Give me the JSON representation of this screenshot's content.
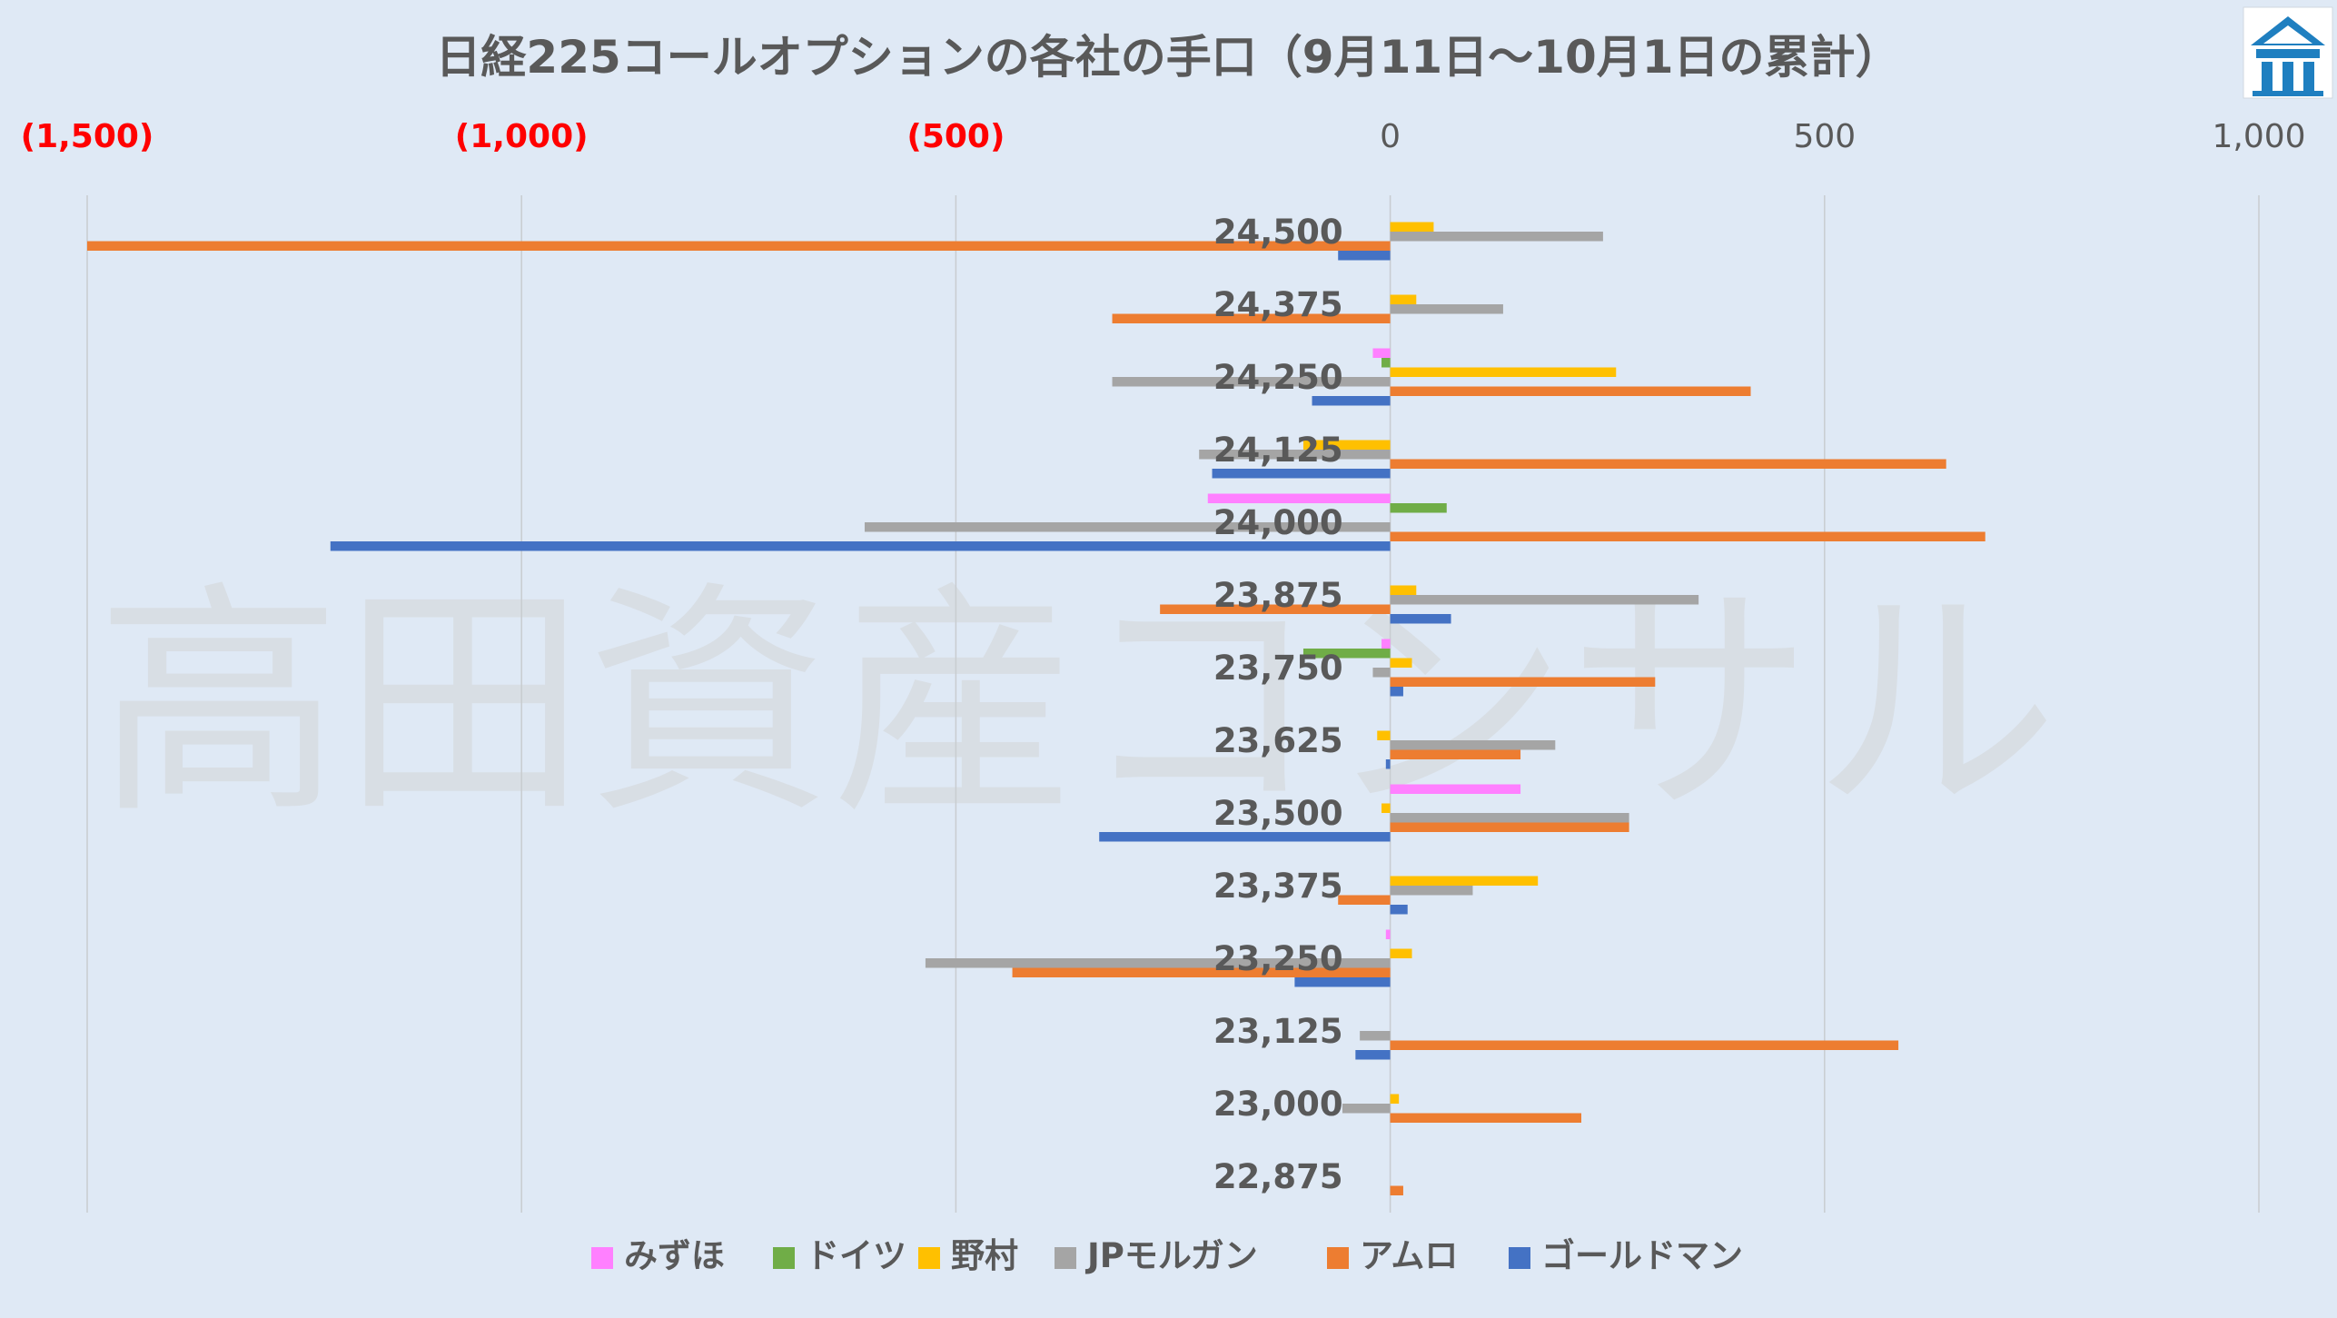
{
  "chart_data": {
    "type": "bar",
    "orientation": "horizontal",
    "title": "日経225コールオプションの各社の手口（9月11日〜10月1日の累計）",
    "watermark": "高田資産コンサル",
    "xlim": [
      -1500,
      1000
    ],
    "x_ticks": [
      {
        "value": -1500,
        "label": "(1,500)"
      },
      {
        "value": -1000,
        "label": "(1,000)"
      },
      {
        "value": -500,
        "label": "(500)"
      },
      {
        "value": 0,
        "label": "0"
      },
      {
        "value": 500,
        "label": "500"
      },
      {
        "value": 1000,
        "label": "1,000"
      }
    ],
    "negative_label_color": "#ff0000",
    "categories": [
      "24,500",
      "24,375",
      "24,250",
      "24,125",
      "24,000",
      "23,875",
      "23,750",
      "23,625",
      "23,500",
      "23,375",
      "23,250",
      "23,125",
      "23,000",
      "22,875"
    ],
    "series": [
      {
        "name": "みずほ",
        "color": "#ff80ff",
        "values": [
          0,
          0,
          -20,
          0,
          -210,
          0,
          -10,
          0,
          150,
          0,
          -5,
          0,
          0,
          0
        ]
      },
      {
        "name": "ドイツ",
        "color": "#70ad47",
        "values": [
          0,
          0,
          -10,
          0,
          65,
          0,
          -100,
          0,
          0,
          0,
          0,
          0,
          0,
          0
        ]
      },
      {
        "name": "野村",
        "color": "#ffc000",
        "values": [
          50,
          30,
          260,
          -100,
          0,
          30,
          25,
          -15,
          -10,
          170,
          25,
          0,
          10,
          0
        ]
      },
      {
        "name": "JPモルガン",
        "color": "#a5a5a5",
        "values": [
          245,
          130,
          -320,
          -220,
          -605,
          355,
          -20,
          190,
          275,
          95,
          -535,
          -35,
          -55,
          0
        ]
      },
      {
        "name": "アムロ",
        "color": "#ed7d31",
        "values": [
          -1500,
          -320,
          415,
          640,
          685,
          -265,
          305,
          150,
          275,
          -60,
          -435,
          585,
          220,
          15
        ]
      },
      {
        "name": "ゴールドマン",
        "color": "#4472c4",
        "values": [
          -60,
          0,
          -90,
          -205,
          -1220,
          70,
          15,
          -5,
          -335,
          20,
          -110,
          -40,
          0,
          0
        ]
      }
    ]
  }
}
